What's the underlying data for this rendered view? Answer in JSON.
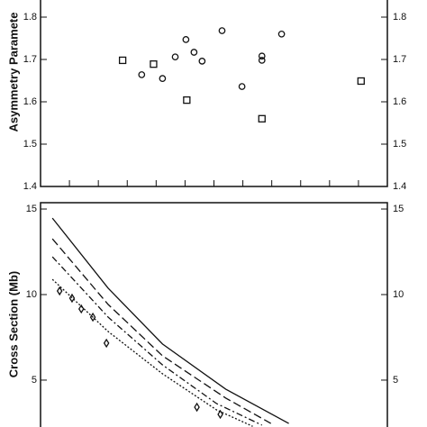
{
  "chart_data": [
    {
      "type": "scatter",
      "y_label": "Asymmetry Paramete",
      "xlim": [
        0,
        12
      ],
      "xticks": [
        1,
        2,
        3,
        4,
        5,
        6,
        7,
        8,
        9,
        10,
        11
      ],
      "ylim": [
        1.4,
        1.84
      ],
      "yticks": [
        1.4,
        1.5,
        1.6,
        1.7,
        1.8
      ],
      "series": [
        {
          "marker": "circle",
          "color": "#111111",
          "x": [
            3.5,
            4.22,
            4.66,
            5.03,
            5.31,
            5.59,
            6.28,
            6.97,
            7.66,
            7.66,
            8.34
          ],
          "values": [
            1.664,
            1.655,
            1.706,
            1.747,
            1.717,
            1.696,
            1.768,
            1.636,
            1.708,
            1.698,
            1.76
          ]
        },
        {
          "marker": "square",
          "color": "#111111",
          "x": [
            2.84,
            3.91,
            5.06,
            7.66,
            11.09
          ],
          "values": [
            1.698,
            1.689,
            1.604,
            1.56,
            1.649
          ]
        }
      ]
    },
    {
      "type": "line",
      "y_label": "Cross Section (Mb)",
      "xlim": [
        0,
        12
      ],
      "ylim": [
        2.26,
        15.37
      ],
      "yticks": [
        5,
        10,
        15
      ],
      "series": [
        {
          "line_style": "solid",
          "color": "#111111",
          "x": [
            0.41,
            2.34,
            4.22,
            6.41,
            8.59
          ],
          "values": [
            14.47,
            10.37,
            7.11,
            4.47,
            2.47
          ]
        },
        {
          "line_style": "long-dash",
          "color": "#111111",
          "x": [
            0.41,
            2.34,
            4.22,
            6.41,
            7.97
          ],
          "values": [
            13.26,
            9.42,
            6.42,
            3.95,
            2.47
          ]
        },
        {
          "line_style": "dash-dot",
          "color": "#111111",
          "x": [
            0.41,
            2.34,
            4.22,
            6.09,
            7.66
          ],
          "values": [
            12.21,
            8.68,
            5.89,
            3.63,
            2.37
          ]
        },
        {
          "line_style": "dotted",
          "color": "#111111",
          "x": [
            0.41,
            2.34,
            4.22,
            6.09,
            7.34
          ],
          "values": [
            10.89,
            7.84,
            5.37,
            3.26,
            2.3
          ]
        },
        {
          "line_style": "none",
          "marker": "diamond",
          "color": "#111111",
          "x": [
            0.66,
            1.09,
            1.41,
            1.81,
            2.28,
            5.41,
            6.22
          ],
          "values": [
            10.21,
            9.79,
            9.16,
            8.68,
            7.16,
            3.42,
            3.0
          ]
        }
      ]
    }
  ]
}
